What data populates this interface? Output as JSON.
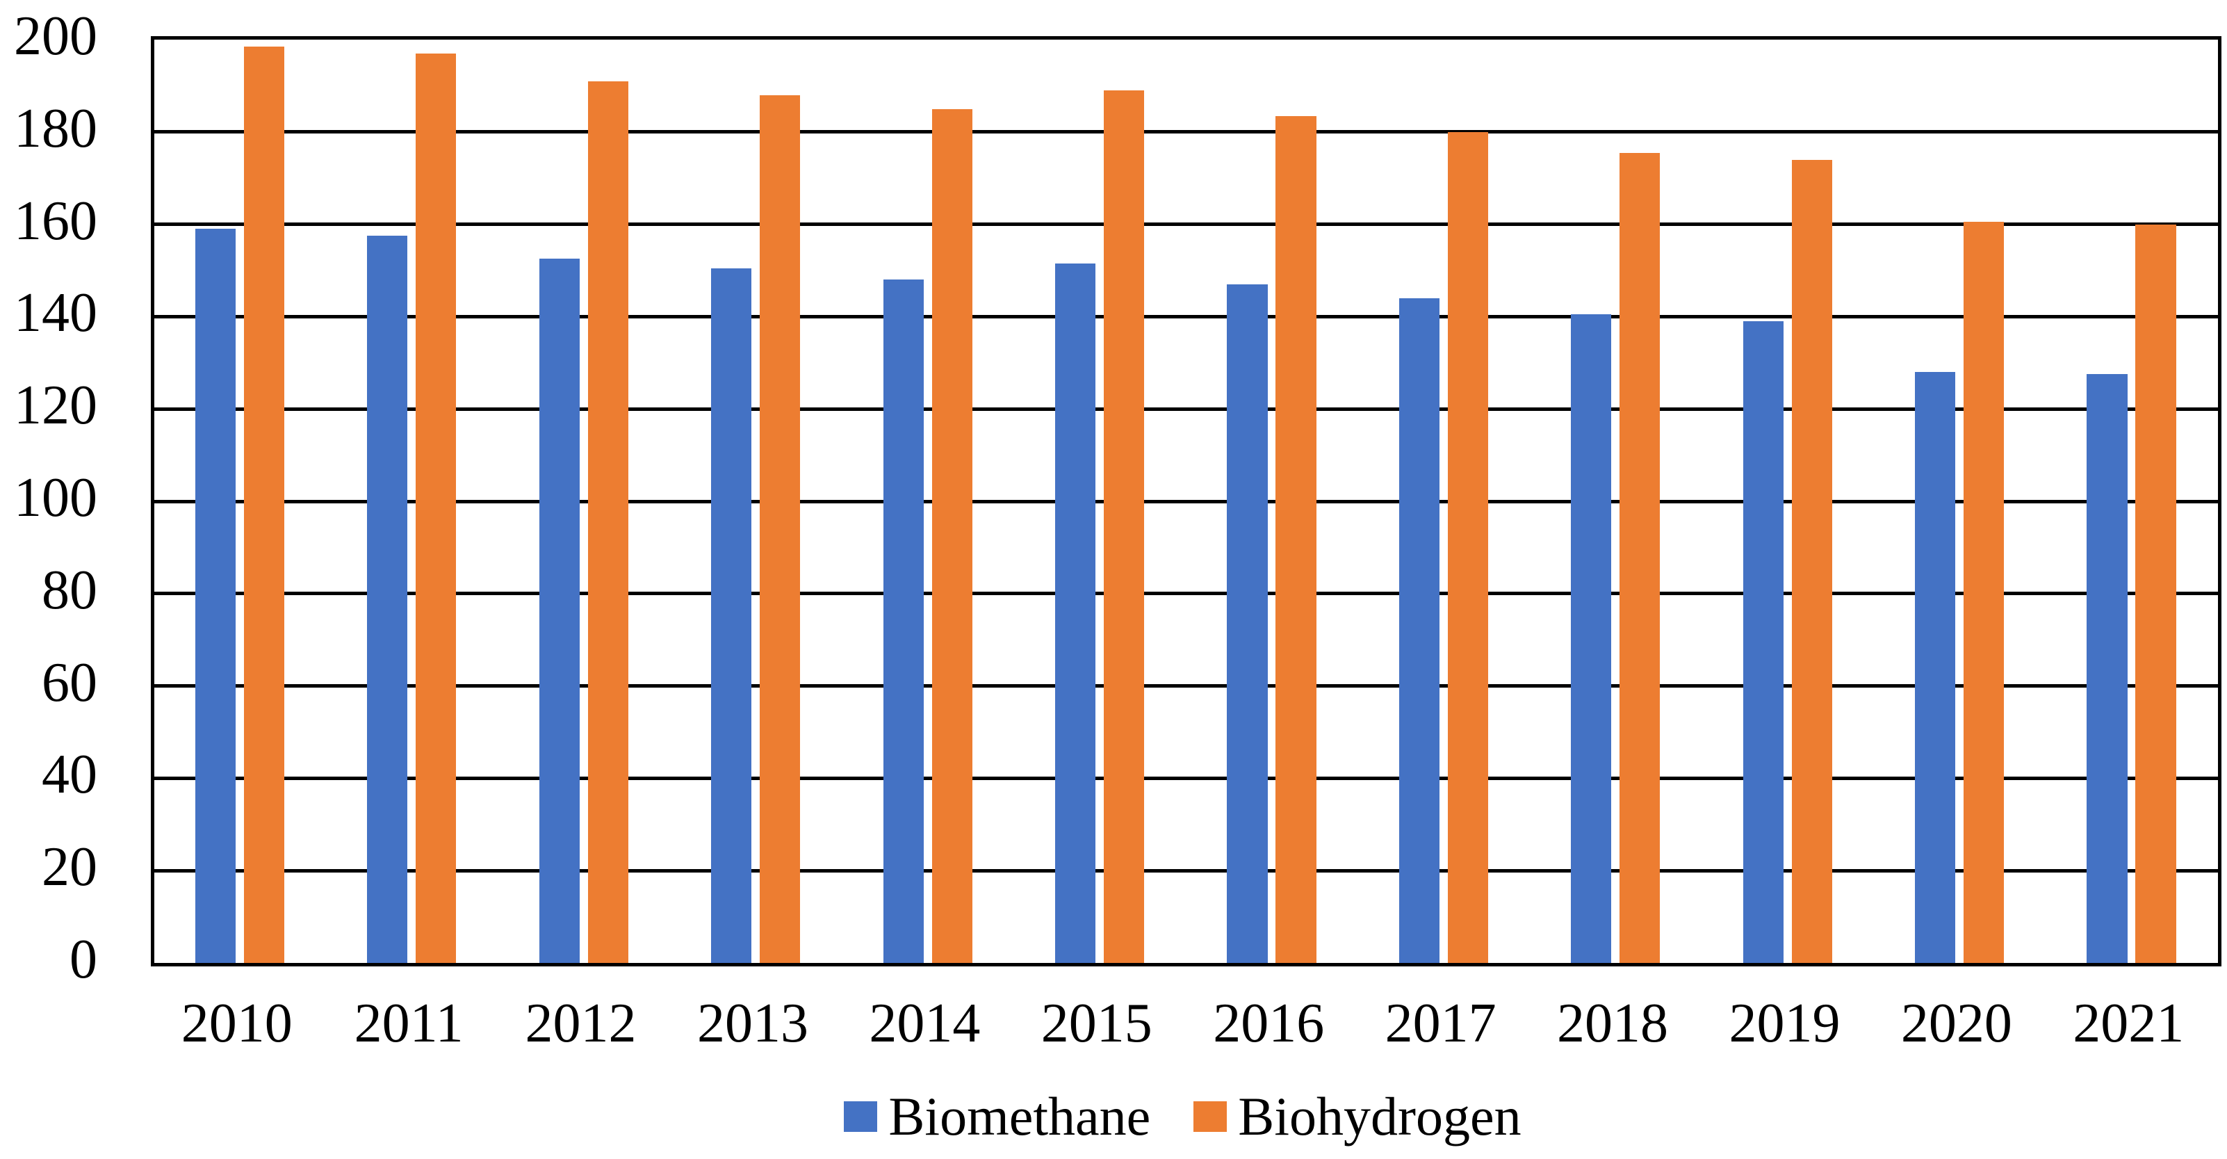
{
  "chart_data": {
    "type": "bar",
    "title": "",
    "xlabel": "",
    "ylabel": "",
    "categories": [
      "2010",
      "2011",
      "2012",
      "2013",
      "2014",
      "2015",
      "2016",
      "2017",
      "2018",
      "2019",
      "2020",
      "2021"
    ],
    "series": [
      {
        "name": "Biomethane",
        "color": "#4472C4",
        "values": [
          159,
          157.5,
          152.5,
          150.5,
          148,
          151.5,
          147,
          144,
          140.5,
          139,
          128,
          127.5
        ]
      },
      {
        "name": "Biohydrogen",
        "color": "#ED7D31",
        "values": [
          198.5,
          197,
          191,
          188,
          185,
          189,
          183.5,
          180,
          175.5,
          174,
          160.5,
          160
        ]
      }
    ],
    "ylim": [
      0,
      200
    ],
    "ytick_step": 20,
    "y_tick_labels": [
      "0",
      "20",
      "40",
      "60",
      "80",
      "100",
      "120",
      "140",
      "160",
      "180",
      "200"
    ],
    "grid": true,
    "grid_color": "#000000",
    "legend_position": "bottom"
  },
  "legend": {
    "items": [
      {
        "label": "Biomethane",
        "color": "#4472C4"
      },
      {
        "label": "Biohydrogen",
        "color": "#ED7D31"
      }
    ]
  }
}
